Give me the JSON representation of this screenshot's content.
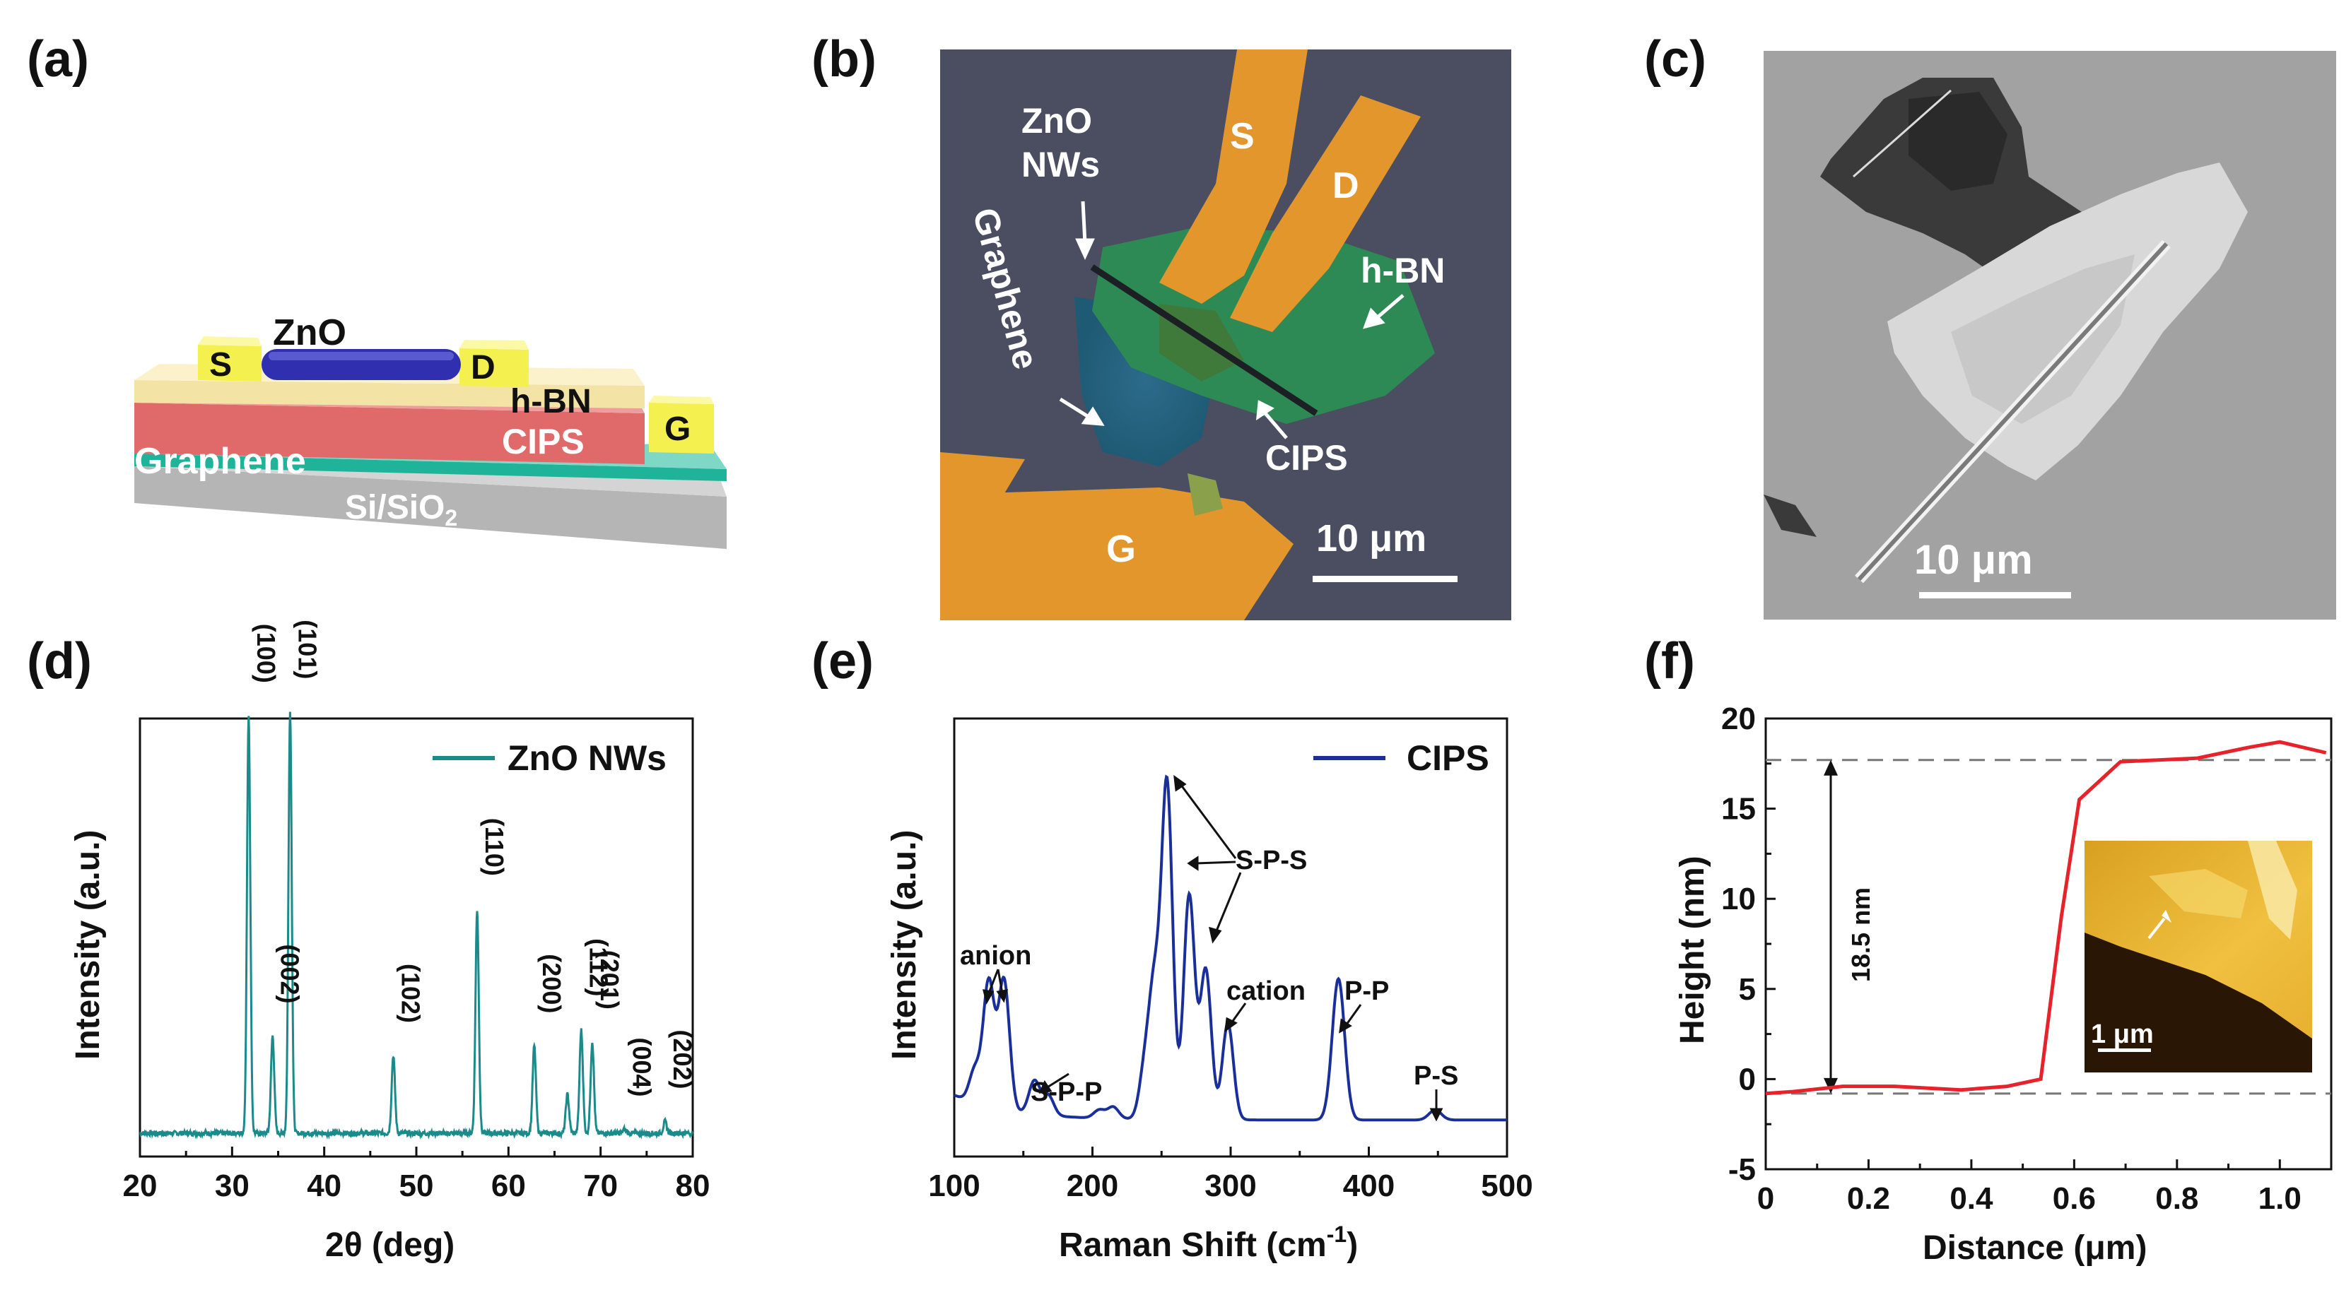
{
  "panels": {
    "a": {
      "label": "(a)",
      "layers": {
        "s": "S",
        "zno": "ZnO",
        "d": "D",
        "hbn": "h-BN",
        "g": "G",
        "cips": "CIPS",
        "graphene": "Graphene",
        "substrate": "Si/SiO",
        "substrate_sub": "2"
      }
    },
    "b": {
      "label": "(b)",
      "labels": {
        "zno_line1": "ZnO",
        "zno_line2": "NWs",
        "s": "S",
        "d": "D",
        "graphene": "Graphene",
        "hbn": "h-BN",
        "cips": "CIPS",
        "g": "G",
        "scale": "10 μm"
      }
    },
    "c": {
      "label": "(c)",
      "scale": "10 μm"
    },
    "d": {
      "label": "(d)"
    },
    "e": {
      "label": "(e)"
    },
    "f": {
      "label": "(f)"
    }
  },
  "chart_data": [
    {
      "id": "d",
      "type": "line",
      "title": "",
      "xlabel": "2θ (deg)",
      "ylabel": "Intensity (a.u.)",
      "xlim": [
        20,
        80
      ],
      "xticks": [
        "20",
        "30",
        "40",
        "50",
        "60",
        "70",
        "80"
      ],
      "legend": "ZnO NWs",
      "color": "#1a8a8a",
      "baseline": 1.0,
      "peaks": [
        {
          "x": 31.8,
          "y": 21.5,
          "label": "(100)"
        },
        {
          "x": 34.4,
          "y": 5.0,
          "label": "(002)"
        },
        {
          "x": 36.3,
          "y": 21.7,
          "label": "(101)"
        },
        {
          "x": 47.5,
          "y": 4.0,
          "label": "(102)"
        },
        {
          "x": 56.6,
          "y": 11.5,
          "label": "(110)"
        },
        {
          "x": 62.8,
          "y": 4.5,
          "label": "(200)"
        },
        {
          "x": 66.4,
          "y": 2.0,
          "label": ""
        },
        {
          "x": 67.9,
          "y": 5.3,
          "label": "(112)"
        },
        {
          "x": 69.1,
          "y": 4.7,
          "label": "(201)"
        },
        {
          "x": 72.6,
          "y": 0.2,
          "label": "(004)"
        },
        {
          "x": 77.0,
          "y": 0.6,
          "label": "(202)"
        }
      ]
    },
    {
      "id": "e",
      "type": "line",
      "title": "",
      "xlabel": "Raman Shift (cm",
      "xlabel_sup": "-1",
      "xlabel_end": ")",
      "ylabel": "Intensity (a.u.)",
      "xlim": [
        100,
        500
      ],
      "xticks": [
        "100",
        "200",
        "300",
        "400",
        "500"
      ],
      "legend": "CIPS",
      "color": "#1a2f9a",
      "annotations": [
        "anion",
        "S-P-P",
        "S-P-S",
        "cation",
        "P-P",
        "P-S"
      ],
      "peaks": [
        {
          "x": 115,
          "y": 2.0
        },
        {
          "x": 125,
          "y": 7.5
        },
        {
          "x": 136,
          "y": 7.8
        },
        {
          "x": 158,
          "y": 2.0
        },
        {
          "x": 168,
          "y": 1.2
        },
        {
          "x": 205,
          "y": 0.5
        },
        {
          "x": 215,
          "y": 0.7
        },
        {
          "x": 238,
          "y": 3.0
        },
        {
          "x": 245,
          "y": 7.5
        },
        {
          "x": 254,
          "y": 20.0
        },
        {
          "x": 270,
          "y": 13.5
        },
        {
          "x": 282,
          "y": 9.0
        },
        {
          "x": 298,
          "y": 5.8
        },
        {
          "x": 378,
          "y": 8.5
        },
        {
          "x": 448,
          "y": 0.6
        }
      ]
    },
    {
      "id": "f",
      "type": "line",
      "title": "",
      "xlabel": "Distance (μm)",
      "ylabel": "Height (nm)",
      "xlim": [
        0,
        1.1
      ],
      "ylim": [
        -5,
        20
      ],
      "xticks": [
        "0",
        "0.2",
        "0.4",
        "0.6",
        "0.8",
        "1.0"
      ],
      "yticks": [
        "-5",
        "0",
        "5",
        "10",
        "15",
        "20"
      ],
      "color": "#e8222a",
      "x": [
        0.0,
        0.05,
        0.15,
        0.25,
        0.38,
        0.47,
        0.535,
        0.575,
        0.61,
        0.69,
        0.84,
        0.94,
        1.0,
        1.09
      ],
      "y": [
        -0.8,
        -0.7,
        -0.4,
        -0.4,
        -0.6,
        -0.4,
        0.0,
        9.0,
        15.5,
        17.6,
        17.8,
        18.4,
        18.7,
        18.1
      ],
      "ref_lines": [
        17.7,
        -0.8
      ],
      "annotation": "18.5 nm",
      "inset_scale": "1 μm"
    }
  ]
}
